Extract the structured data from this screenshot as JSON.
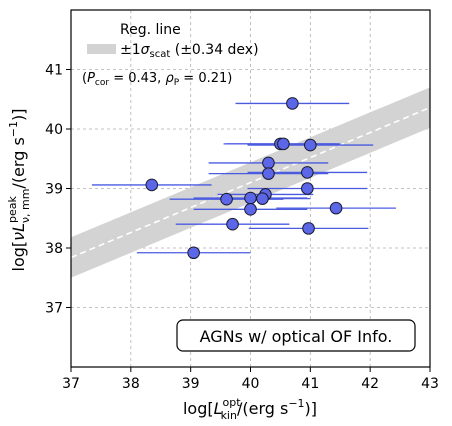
{
  "chart_data": {
    "type": "scatter",
    "xlim": [
      37,
      43
    ],
    "ylim": [
      36,
      42
    ],
    "xticks": [
      "37",
      "38",
      "39",
      "40",
      "41",
      "42",
      "43"
    ],
    "yticks": [
      "37",
      "38",
      "39",
      "40",
      "41"
    ],
    "grid": true,
    "xlabel": {
      "pre": "log[",
      "main": "L",
      "sup": "opt",
      "sub": "kin",
      "post": "/(erg s",
      "exp": "−1",
      "end": ")]"
    },
    "ylabel": {
      "pre": "log[",
      "nu": "ν",
      "main": "L",
      "sup": "peak",
      "sub": "ν, mm",
      "post": "/(erg s",
      "exp": "−1",
      "end": ")]"
    },
    "legend": {
      "placement": "top-left",
      "line_label": "Reg. line",
      "band_label": {
        "pre": "±1",
        "sym": "σ",
        "sub": "scat",
        "post": " (±0.34 dex)"
      }
    },
    "annotation": {
      "open": "(",
      "p1": "P",
      "s1": "cor",
      "v1": " = 0.43, ",
      "p2": "ρ",
      "s2": "P",
      "v2": " = 0.21)"
    },
    "box_label": "AGNs w/ optical OF Info.",
    "regression": {
      "slope": 0.42,
      "intercept": 22.3,
      "band": 0.34
    },
    "points": [
      {
        "x": 40.7,
        "y": 40.43,
        "xerr": 0.95
      },
      {
        "x": 40.5,
        "y": 39.75,
        "xerr": 0.95
      },
      {
        "x": 40.55,
        "y": 39.75,
        "xerr": 0.95
      },
      {
        "x": 41.0,
        "y": 39.73,
        "xerr": 1.05
      },
      {
        "x": 40.3,
        "y": 39.43,
        "xerr": 1.0
      },
      {
        "x": 40.3,
        "y": 39.25,
        "xerr": 1.0
      },
      {
        "x": 40.95,
        "y": 39.27,
        "xerr": 1.0
      },
      {
        "x": 38.35,
        "y": 39.06,
        "xerr": 1.0
      },
      {
        "x": 40.95,
        "y": 39.0,
        "xerr": 1.0
      },
      {
        "x": 40.25,
        "y": 38.9,
        "xerr": 0.8
      },
      {
        "x": 40.2,
        "y": 38.83,
        "xerr": 0.8
      },
      {
        "x": 39.6,
        "y": 38.82,
        "xerr": 0.95
      },
      {
        "x": 40.0,
        "y": 38.84,
        "xerr": 0.95
      },
      {
        "x": 40.0,
        "y": 38.65,
        "xerr": 0.95
      },
      {
        "x": 41.43,
        "y": 38.67,
        "xerr": 1.0
      },
      {
        "x": 39.7,
        "y": 38.4,
        "xerr": 0.95
      },
      {
        "x": 40.97,
        "y": 38.33,
        "xerr": 1.0
      },
      {
        "x": 39.05,
        "y": 37.92,
        "xerr": 0.95
      }
    ],
    "colors": {
      "marker_fill": "#5b67e6",
      "marker_edge": "#1a1a2e",
      "errorbar": "#4a5be0",
      "band": "#d3d3d3",
      "regline": "#ffffff",
      "grid": "#b0b0b0"
    }
  }
}
